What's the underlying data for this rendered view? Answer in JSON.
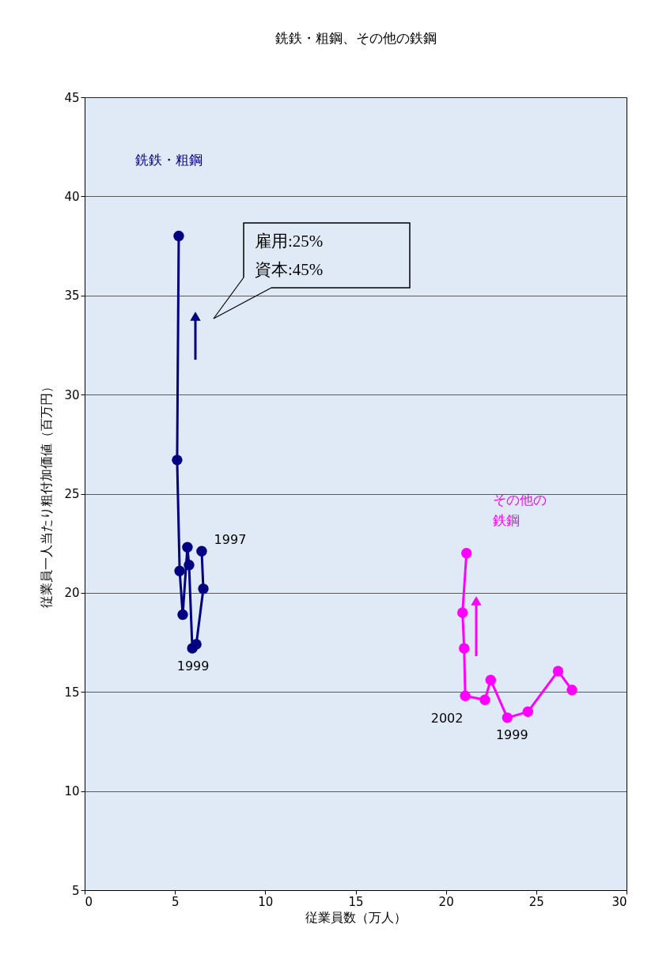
{
  "chart_data": {
    "type": "line",
    "title": "銑鉄・粗鋼、その他の鉄鋼",
    "xlabel": "従業員数（万人）",
    "ylabel": "従業員一人当たり粗付加価値（百万円）",
    "xlim": [
      0,
      30
    ],
    "xticks": [
      0,
      5,
      10,
      15,
      20,
      25,
      30
    ],
    "ylim": [
      5,
      45
    ],
    "yticks": [
      5,
      10,
      15,
      20,
      25,
      30,
      35,
      40,
      45
    ],
    "grid": "y",
    "marker": "circle",
    "line_style": "solid",
    "series": [
      {
        "name": "銑鉄・粗鋼",
        "color": "#000080",
        "x": [
          6.48,
          6.57,
          6.18,
          5.96,
          5.78,
          5.69,
          5.43,
          5.26,
          5.12,
          5.21
        ],
        "values": [
          22.1,
          20.2,
          17.4,
          17.2,
          21.4,
          22.3,
          18.9,
          21.1,
          26.7,
          38.0
        ]
      },
      {
        "name": "その他の鉄鋼",
        "color": "#ff00ff",
        "x": [
          26.98,
          26.21,
          24.54,
          23.4,
          22.48,
          22.16,
          21.07,
          21.01,
          20.92,
          21.14
        ],
        "values": [
          15.1,
          16.05,
          14.0,
          13.7,
          15.6,
          14.6,
          14.8,
          17.2,
          19.0,
          22.0
        ]
      }
    ],
    "annotations": [
      {
        "text": "1997",
        "x": 6.48,
        "y": 22.1
      },
      {
        "text": "1999",
        "x": 6.18,
        "y": 17.4
      },
      {
        "text": "2002",
        "x": 21.07,
        "y": 14.8
      },
      {
        "text": "1999",
        "x": 23.4,
        "y": 13.7
      },
      "雇用:25%\n資本:45%"
    ]
  }
}
